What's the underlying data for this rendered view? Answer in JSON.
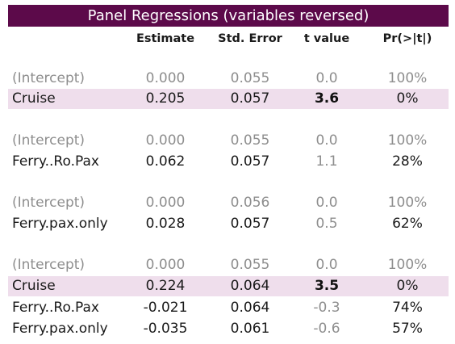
{
  "title": "Panel Regressions (variables reversed)",
  "columns": [
    "Estimate",
    "Std. Error",
    "t value",
    "Pr(>|t|)"
  ],
  "rows": [
    {
      "name": "(Intercept)",
      "estimate": "0.000",
      "std_error": "0.055",
      "t_value": "0.0",
      "p_value": "100%",
      "type": "intercept"
    },
    {
      "name": "Cruise",
      "estimate": "0.205",
      "std_error": "0.057",
      "t_value": "3.6",
      "p_value": "0%",
      "type": "highlight"
    },
    {
      "name": "(Intercept)",
      "estimate": "0.000",
      "std_error": "0.055",
      "t_value": "0.0",
      "p_value": "100%",
      "type": "intercept"
    },
    {
      "name": "Ferry..Ro.Pax",
      "estimate": "0.062",
      "std_error": "0.057",
      "t_value": "1.1",
      "p_value": "28%",
      "type": "normal"
    },
    {
      "name": "(Intercept)",
      "estimate": "0.000",
      "std_error": "0.056",
      "t_value": "0.0",
      "p_value": "100%",
      "type": "intercept"
    },
    {
      "name": "Ferry.pax.only",
      "estimate": "0.028",
      "std_error": "0.057",
      "t_value": "0.5",
      "p_value": "62%",
      "type": "normal"
    },
    {
      "name": "(Intercept)",
      "estimate": "0.000",
      "std_error": "0.055",
      "t_value": "0.0",
      "p_value": "100%",
      "type": "intercept"
    },
    {
      "name": "Cruise",
      "estimate": "0.224",
      "std_error": "0.064",
      "t_value": "3.5",
      "p_value": "0%",
      "type": "highlight"
    },
    {
      "name": "Ferry..Ro.Pax",
      "estimate": "-0.021",
      "std_error": "0.064",
      "t_value": "-0.3",
      "p_value": "74%",
      "type": "normal"
    },
    {
      "name": "Ferry.pax.only",
      "estimate": "-0.035",
      "std_error": "0.061",
      "t_value": "-0.6",
      "p_value": "57%",
      "type": "normal"
    }
  ],
  "colors": {
    "title_bg": "#5c0a4a",
    "highlight_bg": "#efdeec",
    "muted_text": "#8e8e8e"
  }
}
